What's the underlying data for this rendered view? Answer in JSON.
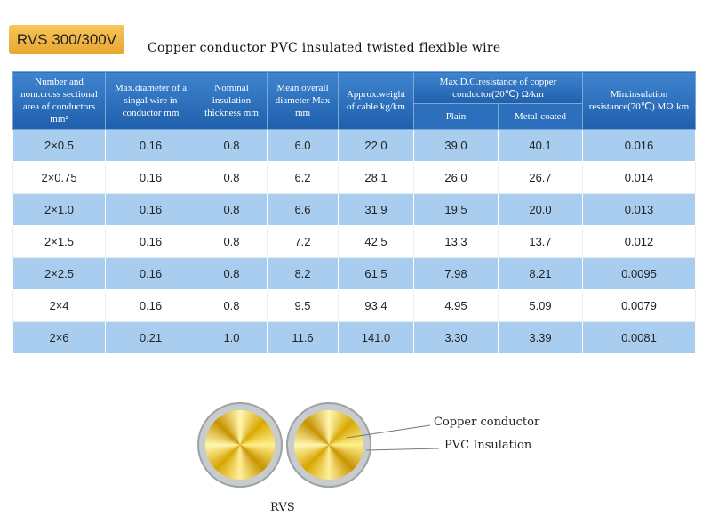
{
  "header": {
    "badge": "RVS 300/300V",
    "title": "Copper conductor PVC insulated twisted flexible wire"
  },
  "table": {
    "columns": [
      "Number and nom.cross sectional area of conductors mm²",
      "Max.diameter of a singal wire in conductor mm",
      "Nominal insulation thickness mm",
      "Mean overall diameter Max mm",
      "Approx.weight of cable kg/km",
      "Max.D.C.resistance of copper conductor(20℃) Ω/km",
      "Min.insulation resistance(70℃) MΩ·km"
    ],
    "subcolumns": [
      "Plain",
      "Metal-coated"
    ],
    "rows": [
      [
        "2×0.5",
        "0.16",
        "0.8",
        "6.0",
        "22.0",
        "39.0",
        "40.1",
        "0.016"
      ],
      [
        "2×0.75",
        "0.16",
        "0.8",
        "6.2",
        "28.1",
        "26.0",
        "26.7",
        "0.014"
      ],
      [
        "2×1.0",
        "0.16",
        "0.8",
        "6.6",
        "31.9",
        "19.5",
        "20.0",
        "0.013"
      ],
      [
        "2×1.5",
        "0.16",
        "0.8",
        "7.2",
        "42.5",
        "13.3",
        "13.7",
        "0.012"
      ],
      [
        "2×2.5",
        "0.16",
        "0.8",
        "8.2",
        "61.5",
        "7.98",
        "8.21",
        "0.0095"
      ],
      [
        "2×4",
        "0.16",
        "0.8",
        "9.5",
        "93.4",
        "4.95",
        "5.09",
        "0.0079"
      ],
      [
        "2×6",
        "0.21",
        "1.0",
        "11.6",
        "141.0",
        "3.30",
        "3.39",
        "0.0081"
      ]
    ]
  },
  "diagram": {
    "labels": [
      "Copper conductor",
      "PVC Insulation"
    ],
    "caption": "RVS"
  }
}
